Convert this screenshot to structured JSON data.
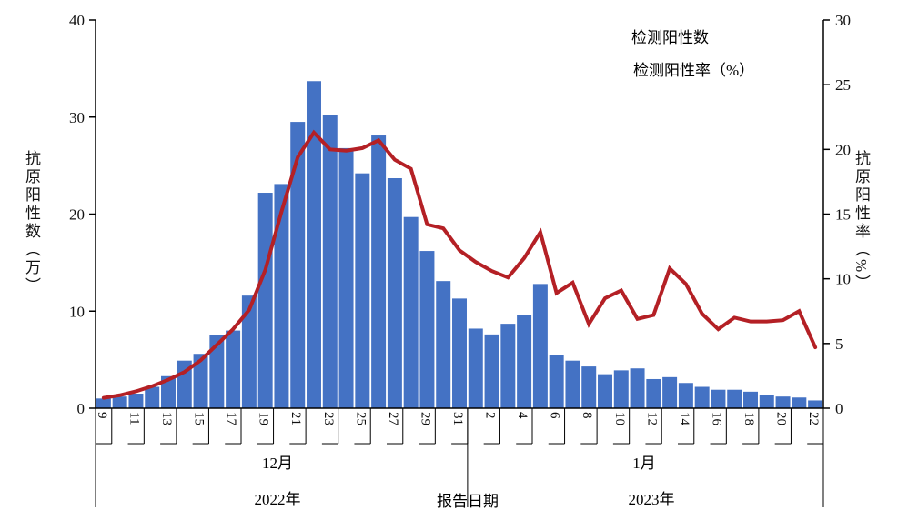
{
  "colors": {
    "bar": "#4472C4",
    "line": "#B42025",
    "axis": "#000000"
  },
  "legend": {
    "bars_label": "检测阳性数",
    "line_label": "检测阳性率（%）"
  },
  "axes": {
    "left_title": "抗原阳性数（万）",
    "right_title": "抗原阳性率（%）",
    "x_title": "报告日期",
    "left_ticks": [
      0,
      10,
      20,
      30,
      40
    ],
    "right_ticks": [
      0,
      5,
      10,
      15,
      20,
      25,
      30
    ]
  },
  "chart_data": {
    "type": "combo",
    "title": "",
    "xlabel": "报告日期",
    "ylabel_left": "抗原阳性数（万）",
    "ylabel_right": "抗原阳性率（%）",
    "ylim_left": [
      0,
      40
    ],
    "ylim_right": [
      0,
      30
    ],
    "grid": false,
    "legend_position": "top-right",
    "categories": [
      "12-9",
      "12-10",
      "12-11",
      "12-12",
      "12-13",
      "12-14",
      "12-15",
      "12-16",
      "12-17",
      "12-18",
      "12-19",
      "12-20",
      "12-21",
      "12-22",
      "12-23",
      "12-24",
      "12-25",
      "12-26",
      "12-27",
      "12-28",
      "12-29",
      "12-30",
      "12-31",
      "1-1",
      "1-2",
      "1-3",
      "1-4",
      "1-5",
      "1-6",
      "1-7",
      "1-8",
      "1-9",
      "1-10",
      "1-11",
      "1-12",
      "1-13",
      "1-14",
      "1-15",
      "1-16",
      "1-17",
      "1-18",
      "1-19",
      "1-20",
      "1-21",
      "1-22"
    ],
    "series": [
      {
        "name": "检测阳性数",
        "type": "bar",
        "axis": "left",
        "unit": "万",
        "values": [
          1.0,
          1.2,
          1.5,
          2.2,
          3.3,
          4.9,
          5.6,
          7.5,
          8.0,
          11.6,
          22.2,
          23.1,
          29.5,
          33.7,
          30.2,
          26.8,
          24.2,
          28.1,
          23.7,
          19.7,
          16.2,
          13.1,
          11.3,
          8.2,
          7.6,
          8.7,
          9.6,
          12.8,
          5.5,
          4.9,
          4.3,
          3.5,
          3.9,
          4.1,
          3.0,
          3.2,
          2.6,
          2.2,
          1.9,
          1.9,
          1.7,
          1.4,
          1.2,
          1.1,
          0.8
        ]
      },
      {
        "name": "检测阳性率（%）",
        "type": "line",
        "axis": "right",
        "unit": "%",
        "values": [
          0.8,
          1.0,
          1.3,
          1.7,
          2.2,
          2.8,
          3.7,
          4.9,
          6.1,
          7.6,
          10.7,
          15.2,
          19.4,
          21.3,
          20.0,
          19.9,
          20.1,
          20.7,
          19.2,
          18.5,
          14.2,
          13.9,
          12.2,
          11.3,
          10.6,
          10.1,
          11.6,
          13.6,
          8.9,
          9.7,
          6.5,
          8.5,
          9.1,
          6.9,
          7.2,
          10.8,
          9.6,
          7.3,
          6.1,
          7.0,
          6.7,
          6.7,
          6.8,
          7.5,
          4.7
        ]
      }
    ],
    "x_ticks": [
      {
        "label": "9",
        "index": 0
      },
      {
        "label": "11",
        "index": 2
      },
      {
        "label": "13",
        "index": 4
      },
      {
        "label": "15",
        "index": 6
      },
      {
        "label": "17",
        "index": 8
      },
      {
        "label": "19",
        "index": 10
      },
      {
        "label": "21",
        "index": 12
      },
      {
        "label": "23",
        "index": 14
      },
      {
        "label": "25",
        "index": 16
      },
      {
        "label": "27",
        "index": 18
      },
      {
        "label": "29",
        "index": 20
      },
      {
        "label": "31",
        "index": 22
      },
      {
        "label": "2",
        "index": 24
      },
      {
        "label": "4",
        "index": 26
      },
      {
        "label": "6",
        "index": 28
      },
      {
        "label": "8",
        "index": 30
      },
      {
        "label": "10",
        "index": 32
      },
      {
        "label": "12",
        "index": 34
      },
      {
        "label": "14",
        "index": 36
      },
      {
        "label": "16",
        "index": 38
      },
      {
        "label": "18",
        "index": 40
      },
      {
        "label": "20",
        "index": 42
      },
      {
        "label": "22",
        "index": 44
      }
    ],
    "x_groups": [
      {
        "month": "12月",
        "year": "2022年",
        "from": 0,
        "to": 22
      },
      {
        "month": "1月",
        "year": "2023年",
        "from": 23,
        "to": 44
      }
    ]
  }
}
